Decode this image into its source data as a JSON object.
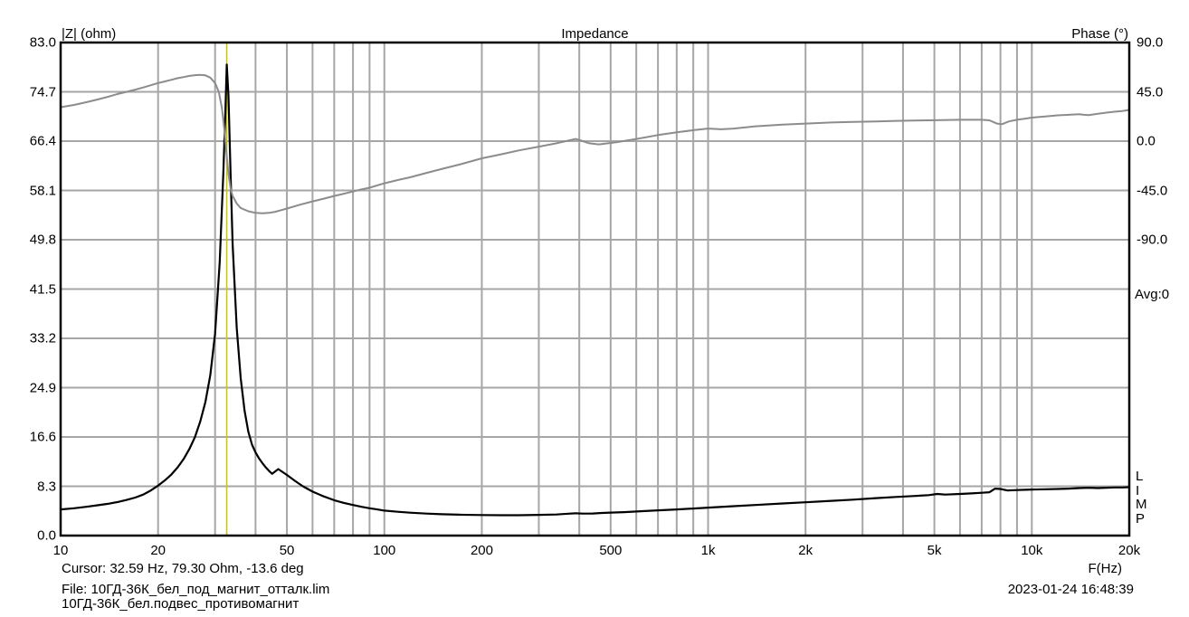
{
  "header": {
    "y_left_label": "|Z| (ohm)",
    "y_right_label": "Phase (°)"
  },
  "right_panel": {
    "avg_readout": "Avg:0",
    "app_logo_vertical": "L\nI\nM\nP"
  },
  "footer": {
    "cursor_readout": "Cursor: 32.59 Hz, 79.30 Ohm, -13.6 deg",
    "file_line": "File: 10ГД-36К_бел_под_магнит_отталк.lim",
    "note_line": "10ГД-36К_бел.подвес_противомагнит",
    "datetime": "2023-01-24 16:48:39",
    "x_axis_label": "F(Hz)"
  },
  "chart_data": {
    "type": "line",
    "title": "Impedance",
    "legend": "none",
    "grid": {
      "show": true,
      "color": "#a6a6a6",
      "border_color": "#000000"
    },
    "x_axis": {
      "label": "F(Hz)",
      "scale": "log",
      "min": 10,
      "max": 20000,
      "ticks": [
        {
          "v": 10,
          "label": "10"
        },
        {
          "v": 20,
          "label": "20"
        },
        {
          "v": 50,
          "label": "50"
        },
        {
          "v": 100,
          "label": "100"
        },
        {
          "v": 200,
          "label": "200"
        },
        {
          "v": 500,
          "label": "500"
        },
        {
          "v": 1000,
          "label": "1k"
        },
        {
          "v": 2000,
          "label": "2k"
        },
        {
          "v": 5000,
          "label": "5k"
        },
        {
          "v": 10000,
          "label": "10k"
        },
        {
          "v": 20000,
          "label": "20k"
        }
      ]
    },
    "y_left": {
      "label": "|Z| (ohm)",
      "min": 0,
      "max": 83,
      "ticks": [
        {
          "v": 83.0,
          "label": "83.0"
        },
        {
          "v": 74.7,
          "label": "74.7"
        },
        {
          "v": 66.4,
          "label": "66.4"
        },
        {
          "v": 58.1,
          "label": "58.1"
        },
        {
          "v": 49.8,
          "label": "49.8"
        },
        {
          "v": 41.5,
          "label": "41.5"
        },
        {
          "v": 33.2,
          "label": "33.2"
        },
        {
          "v": 24.9,
          "label": "24.9"
        },
        {
          "v": 16.6,
          "label": "16.6"
        },
        {
          "v": 8.3,
          "label": "8.3"
        },
        {
          "v": 0.0,
          "label": "0.0"
        }
      ]
    },
    "y_right": {
      "label": "Phase (°)",
      "top_value": 90,
      "deg_per_div": 45,
      "divisions": 10,
      "ticks": [
        {
          "v": 90.0,
          "label": "90.0"
        },
        {
          "v": 45.0,
          "label": "45.0"
        },
        {
          "v": 0.0,
          "label": "0.0"
        },
        {
          "v": -45.0,
          "label": "-45.0"
        },
        {
          "v": -90.0,
          "label": "-90.0"
        }
      ]
    },
    "cursor": {
      "freq_hz": 32.59,
      "z_ohm": 79.3,
      "phase_deg": -13.6,
      "color": "#cdc500"
    },
    "series": [
      {
        "name": "impedance-magnitude",
        "axis": "left",
        "color": "#000000",
        "width": 2.2,
        "points": [
          [
            10,
            4.4
          ],
          [
            11,
            4.6
          ],
          [
            12,
            4.85
          ],
          [
            13,
            5.1
          ],
          [
            14,
            5.35
          ],
          [
            15,
            5.65
          ],
          [
            16,
            6.0
          ],
          [
            17,
            6.4
          ],
          [
            18,
            6.9
          ],
          [
            19,
            7.6
          ],
          [
            20,
            8.4
          ],
          [
            21,
            9.3
          ],
          [
            22,
            10.3
          ],
          [
            23,
            11.5
          ],
          [
            24,
            12.9
          ],
          [
            25,
            14.6
          ],
          [
            26,
            16.6
          ],
          [
            27,
            19.2
          ],
          [
            28,
            22.5
          ],
          [
            29,
            27
          ],
          [
            30,
            34
          ],
          [
            31,
            46
          ],
          [
            31.8,
            61
          ],
          [
            32.3,
            72
          ],
          [
            32.59,
            79.3
          ],
          [
            33,
            74
          ],
          [
            33.5,
            61
          ],
          [
            34,
            49
          ],
          [
            35,
            35
          ],
          [
            36,
            26.5
          ],
          [
            37,
            21
          ],
          [
            38,
            17.5
          ],
          [
            39,
            15.3
          ],
          [
            40,
            14.0
          ],
          [
            41,
            13
          ],
          [
            42,
            12.2
          ],
          [
            43,
            11.5
          ],
          [
            44,
            10.9
          ],
          [
            45,
            10.4
          ],
          [
            47,
            11.2
          ],
          [
            50,
            10.2
          ],
          [
            53,
            9.2
          ],
          [
            56,
            8.3
          ],
          [
            60,
            7.4
          ],
          [
            65,
            6.6
          ],
          [
            70,
            5.95
          ],
          [
            75,
            5.5
          ],
          [
            80,
            5.15
          ],
          [
            85,
            4.85
          ],
          [
            90,
            4.6
          ],
          [
            95,
            4.4
          ],
          [
            100,
            4.2
          ],
          [
            110,
            4.0
          ],
          [
            120,
            3.85
          ],
          [
            135,
            3.7
          ],
          [
            150,
            3.6
          ],
          [
            170,
            3.52
          ],
          [
            200,
            3.45
          ],
          [
            230,
            3.42
          ],
          [
            260,
            3.43
          ],
          [
            300,
            3.48
          ],
          [
            340,
            3.55
          ],
          [
            370,
            3.68
          ],
          [
            390,
            3.75
          ],
          [
            410,
            3.7
          ],
          [
            440,
            3.72
          ],
          [
            470,
            3.8
          ],
          [
            500,
            3.87
          ],
          [
            550,
            3.95
          ],
          [
            600,
            4.05
          ],
          [
            700,
            4.25
          ],
          [
            800,
            4.4
          ],
          [
            900,
            4.55
          ],
          [
            1000,
            4.7
          ],
          [
            1200,
            4.95
          ],
          [
            1400,
            5.15
          ],
          [
            1700,
            5.4
          ],
          [
            2000,
            5.6
          ],
          [
            2400,
            5.85
          ],
          [
            2800,
            6.05
          ],
          [
            3300,
            6.3
          ],
          [
            3800,
            6.5
          ],
          [
            4300,
            6.65
          ],
          [
            4800,
            6.8
          ],
          [
            5100,
            7.0
          ],
          [
            5400,
            6.9
          ],
          [
            6000,
            7.0
          ],
          [
            6500,
            7.1
          ],
          [
            7000,
            7.2
          ],
          [
            7400,
            7.3
          ],
          [
            7700,
            7.9
          ],
          [
            8000,
            7.85
          ],
          [
            8400,
            7.6
          ],
          [
            8800,
            7.65
          ],
          [
            9500,
            7.7
          ],
          [
            10000,
            7.75
          ],
          [
            11000,
            7.8
          ],
          [
            12000,
            7.85
          ],
          [
            13000,
            7.9
          ],
          [
            14000,
            8.0
          ],
          [
            15000,
            8.05
          ],
          [
            16000,
            8.0
          ],
          [
            17000,
            8.05
          ],
          [
            18000,
            8.1
          ],
          [
            19000,
            8.1
          ],
          [
            20000,
            8.15
          ]
        ]
      },
      {
        "name": "phase",
        "axis": "right",
        "color": "#8c8c8c",
        "width": 2,
        "points": [
          [
            10,
            31
          ],
          [
            11,
            33
          ],
          [
            12,
            35.5
          ],
          [
            13,
            38
          ],
          [
            14,
            40.5
          ],
          [
            15,
            43
          ],
          [
            16,
            45
          ],
          [
            17,
            47
          ],
          [
            18,
            49
          ],
          [
            19,
            51
          ],
          [
            20,
            53
          ],
          [
            21,
            54.5
          ],
          [
            22,
            56
          ],
          [
            23,
            57.5
          ],
          [
            24,
            58.5
          ],
          [
            25,
            59.5
          ],
          [
            26,
            60.2
          ],
          [
            27,
            60.5
          ],
          [
            28,
            60
          ],
          [
            29,
            58
          ],
          [
            30,
            53
          ],
          [
            30.8,
            45
          ],
          [
            31.5,
            30
          ],
          [
            32,
            12
          ],
          [
            32.59,
            -13.6
          ],
          [
            33,
            -30
          ],
          [
            33.5,
            -43
          ],
          [
            34,
            -50
          ],
          [
            35,
            -57
          ],
          [
            36,
            -61
          ],
          [
            38,
            -64
          ],
          [
            40,
            -65.5
          ],
          [
            42,
            -65.8
          ],
          [
            44,
            -65.5
          ],
          [
            46,
            -64.5
          ],
          [
            48,
            -63
          ],
          [
            50,
            -61.5
          ],
          [
            55,
            -58
          ],
          [
            60,
            -55
          ],
          [
            65,
            -52.5
          ],
          [
            70,
            -50
          ],
          [
            75,
            -48
          ],
          [
            80,
            -46
          ],
          [
            85,
            -44
          ],
          [
            90,
            -42.5
          ],
          [
            100,
            -38.5
          ],
          [
            110,
            -35.5
          ],
          [
            120,
            -33
          ],
          [
            135,
            -29
          ],
          [
            150,
            -25.5
          ],
          [
            170,
            -21.5
          ],
          [
            200,
            -15.7
          ],
          [
            230,
            -12
          ],
          [
            260,
            -8.5
          ],
          [
            300,
            -5
          ],
          [
            340,
            -2
          ],
          [
            370,
            0.5
          ],
          [
            390,
            2
          ],
          [
            410,
            0
          ],
          [
            430,
            -2
          ],
          [
            460,
            -3
          ],
          [
            490,
            -2
          ],
          [
            520,
            -1
          ],
          [
            560,
            0.5
          ],
          [
            600,
            2
          ],
          [
            700,
            5.5
          ],
          [
            800,
            8
          ],
          [
            900,
            10
          ],
          [
            1000,
            11.5
          ],
          [
            1100,
            10.8
          ],
          [
            1200,
            11.5
          ],
          [
            1400,
            13.5
          ],
          [
            1700,
            15
          ],
          [
            2000,
            16
          ],
          [
            2400,
            17
          ],
          [
            2800,
            17.5
          ],
          [
            3300,
            18
          ],
          [
            3800,
            18.5
          ],
          [
            4300,
            18.8
          ],
          [
            4800,
            19
          ],
          [
            5500,
            19.3
          ],
          [
            6000,
            19.5
          ],
          [
            6500,
            19.5
          ],
          [
            7000,
            19.5
          ],
          [
            7400,
            19
          ],
          [
            7800,
            16
          ],
          [
            8100,
            15.5
          ],
          [
            8500,
            18
          ],
          [
            9000,
            19.5
          ],
          [
            9500,
            20.5
          ],
          [
            10000,
            21.5
          ],
          [
            11000,
            22.5
          ],
          [
            12000,
            23.5
          ],
          [
            13000,
            24
          ],
          [
            14000,
            24.5
          ],
          [
            14500,
            24
          ],
          [
            15000,
            23.8
          ],
          [
            16000,
            25
          ],
          [
            17000,
            26
          ],
          [
            18000,
            26.8
          ],
          [
            19000,
            27.5
          ],
          [
            20000,
            28.5
          ]
        ]
      }
    ]
  }
}
